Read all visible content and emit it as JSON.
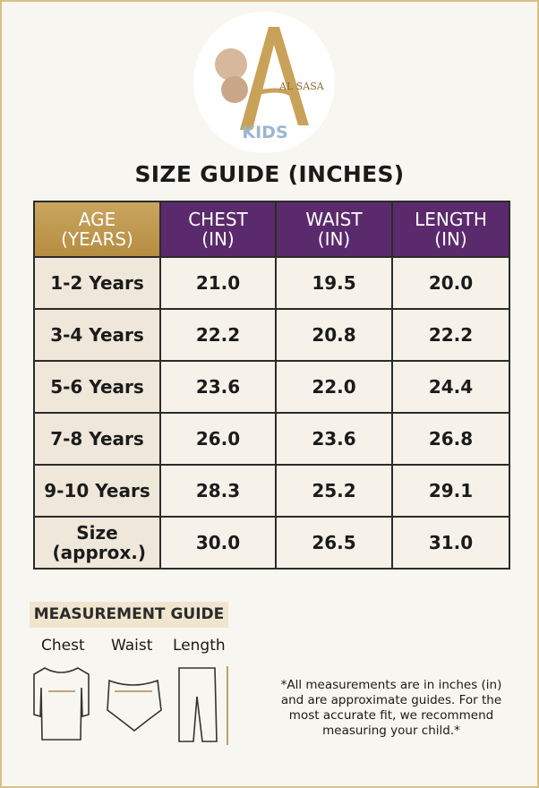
{
  "logo": {
    "brand": "AL SASA",
    "sub": "KIDS"
  },
  "title": "SIZE GUIDE (INCHES)",
  "table": {
    "headers": [
      [
        "AGE",
        "(YEARS)"
      ],
      [
        "CHEST",
        "(IN)"
      ],
      [
        "WAIST",
        "(IN)"
      ],
      [
        "LENGTH",
        "(IN)"
      ]
    ],
    "rows": [
      [
        "1-2 Years",
        "21.0",
        "19.5",
        "20.0"
      ],
      [
        "3-4 Years",
        "22.2",
        "20.8",
        "22.2"
      ],
      [
        "5-6 Years",
        "23.6",
        "22.0",
        "24.4"
      ],
      [
        "7-8 Years",
        "26.0",
        "23.6",
        "26.8"
      ],
      [
        "9-10 Years",
        "28.3",
        "25.2",
        "29.1"
      ],
      [
        "Size (approx.)",
        "30.0",
        "26.5",
        "31.0"
      ]
    ]
  },
  "guide": {
    "title": "MEASUREMENT GUIDE",
    "labels": [
      "Chest",
      "Waist",
      "Length"
    ]
  },
  "note": [
    "*All measurements are in inches (in)",
    "and are approximate guides. For the",
    "most accurate fit, we recommend",
    "measuring your child.*"
  ]
}
